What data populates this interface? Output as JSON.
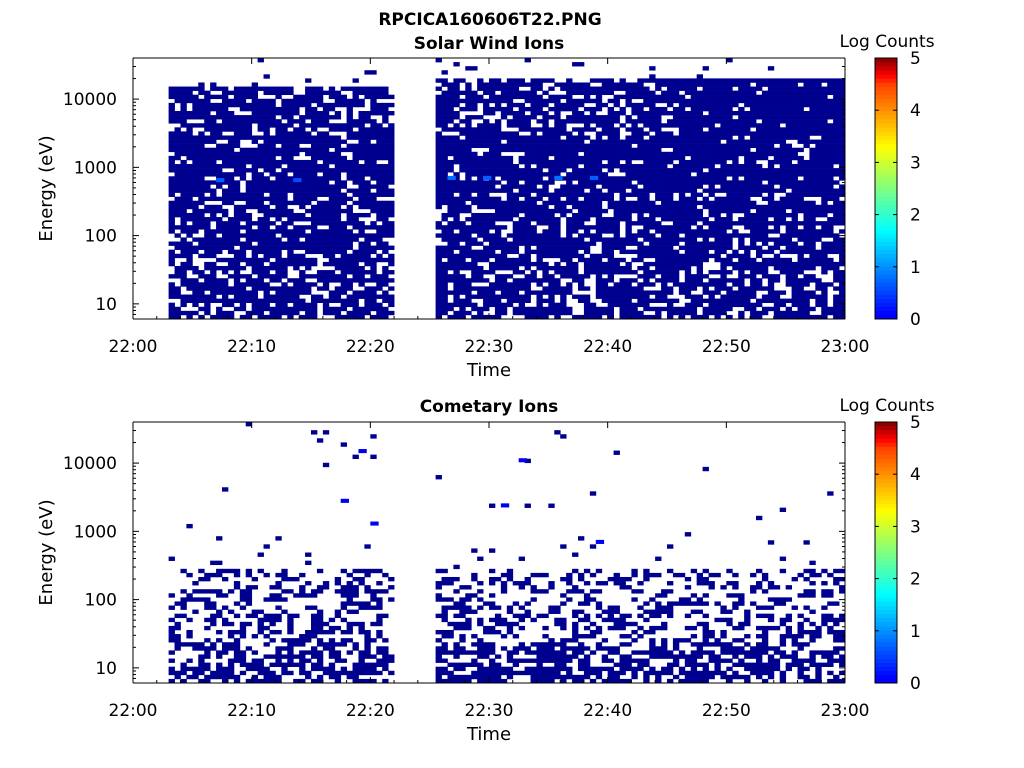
{
  "figure": {
    "title": "RPCICA160606T22.PNG"
  },
  "colors": {
    "background": "#ffffff",
    "axis": "#000000",
    "lowest_count": "#00008f",
    "colormap": "jet"
  },
  "chart_data": [
    {
      "type": "heatmap",
      "title": "Solar Wind Ions",
      "xlabel": "Time",
      "ylabel": "Energy (eV)",
      "x_ticks": [
        "22:00",
        "22:10",
        "22:20",
        "22:30",
        "22:40",
        "22:50",
        "23:00"
      ],
      "y_ticks": [
        "10",
        "100",
        "1000",
        "10000"
      ],
      "x_range": [
        "22:00",
        "23:00"
      ],
      "y_range_eV": [
        6,
        40000
      ],
      "y_scale": "log",
      "colorbar": {
        "label": "Log Counts",
        "ticks": [
          "0",
          "1",
          "2",
          "3",
          "4",
          "5"
        ],
        "range": [
          0,
          5
        ]
      },
      "data_gap": [
        "22:22",
        "22:25.5"
      ],
      "data_coverage": [
        {
          "start": "22:03",
          "end": "22:22",
          "max_energy_eV": 16000,
          "typical_log_counts": 0
        },
        {
          "start": "22:25.5",
          "end": "23:00",
          "max_energy_eV": 20000,
          "typical_log_counts": 0
        }
      ],
      "enhanced_cells": [
        {
          "time": "22:07.5",
          "energy_eV": 650,
          "log_counts": 0.6
        },
        {
          "time": "22:14",
          "energy_eV": 650,
          "log_counts": 0.5
        },
        {
          "time": "22:27",
          "energy_eV": 700,
          "log_counts": 0.7
        },
        {
          "time": "22:30",
          "energy_eV": 700,
          "log_counts": 0.6
        },
        {
          "time": "22:36",
          "energy_eV": 700,
          "log_counts": 0.7
        },
        {
          "time": "22:39",
          "energy_eV": 700,
          "log_counts": 0.6
        }
      ]
    },
    {
      "type": "heatmap",
      "title": "Cometary Ions",
      "xlabel": "Time",
      "ylabel": "Energy (eV)",
      "x_ticks": [
        "22:00",
        "22:10",
        "22:20",
        "22:30",
        "22:40",
        "22:50",
        "23:00"
      ],
      "y_ticks": [
        "10",
        "100",
        "1000",
        "10000"
      ],
      "x_range": [
        "22:00",
        "23:00"
      ],
      "y_range_eV": [
        6,
        40000
      ],
      "y_scale": "log",
      "colorbar": {
        "label": "Log Counts",
        "ticks": [
          "0",
          "1",
          "2",
          "3",
          "4",
          "5"
        ],
        "range": [
          0,
          5
        ]
      },
      "data_gap": [
        "22:22",
        "22:25.5"
      ],
      "data_coverage": [
        {
          "start": "22:03",
          "end": "22:22",
          "dense_below_eV": 300,
          "typical_log_counts": 0
        },
        {
          "start": "22:25.5",
          "end": "23:00",
          "dense_below_eV": 300,
          "typical_log_counts": 0
        }
      ],
      "sparse_high_energy_cells": [
        {
          "time": "22:19.5",
          "energy_eV": 15000,
          "log_counts": 0
        },
        {
          "time": "22:33",
          "energy_eV": 11000,
          "log_counts": 0
        },
        {
          "time": "22:18",
          "energy_eV": 2800,
          "log_counts": 0
        },
        {
          "time": "22:31.5",
          "energy_eV": 2400,
          "log_counts": 0
        },
        {
          "time": "22:20.5",
          "energy_eV": 1300,
          "log_counts": 0
        },
        {
          "time": "22:39.5",
          "energy_eV": 700,
          "log_counts": 0
        }
      ]
    }
  ]
}
